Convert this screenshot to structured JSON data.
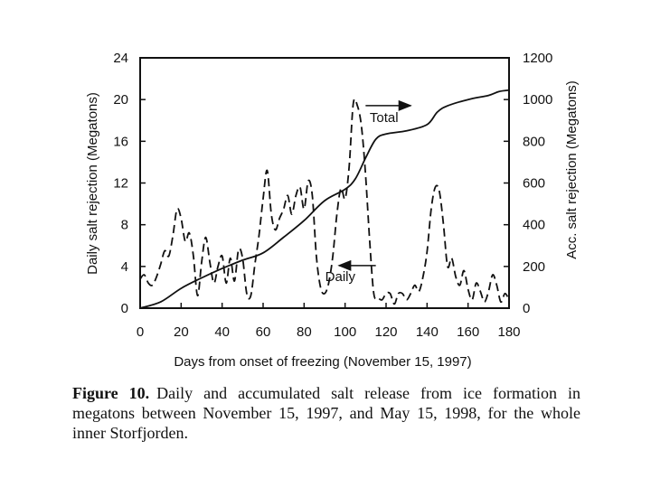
{
  "chart_data": {
    "type": "line",
    "xlabel": "Days from onset of freezing (November 15, 1997)",
    "ylabel": "Daily salt rejection (Megatons)",
    "y2label": "Acc. salt rejection (Megatons)",
    "xlim": [
      0,
      180
    ],
    "ylim": [
      0,
      24
    ],
    "y2lim": [
      0,
      1200
    ],
    "xticks": [
      0,
      20,
      40,
      60,
      80,
      100,
      120,
      140,
      160,
      180
    ],
    "yticks": [
      0,
      4,
      8,
      12,
      16,
      20,
      24
    ],
    "y2ticks": [
      0,
      200,
      400,
      600,
      800,
      1000,
      1200
    ],
    "grid": false,
    "series": [
      {
        "name": "Daily",
        "axis": "left",
        "style": "dashed",
        "x": [
          0,
          2,
          4,
          6,
          8,
          10,
          12,
          14,
          16,
          18,
          20,
          22,
          24,
          26,
          28,
          30,
          32,
          34,
          36,
          38,
          40,
          42,
          44,
          46,
          48,
          50,
          52,
          54,
          56,
          58,
          60,
          62,
          64,
          66,
          68,
          70,
          72,
          74,
          76,
          78,
          80,
          82,
          84,
          86,
          88,
          90,
          92,
          94,
          96,
          98,
          100,
          102,
          104,
          106,
          108,
          110,
          112,
          114,
          116,
          118,
          120,
          122,
          124,
          126,
          128,
          130,
          132,
          134,
          136,
          138,
          140,
          142,
          144,
          146,
          148,
          150,
          152,
          154,
          156,
          158,
          160,
          162,
          164,
          166,
          168,
          170,
          172,
          174,
          176,
          178,
          180
        ],
        "values": [
          2.8,
          3.2,
          2.4,
          2.2,
          3.0,
          4.2,
          5.5,
          5.0,
          7.0,
          9.5,
          8.6,
          6.4,
          7.2,
          5.0,
          1.2,
          4.4,
          6.8,
          4.4,
          2.4,
          4.0,
          5.0,
          2.4,
          4.8,
          2.6,
          5.6,
          4.8,
          1.4,
          1.2,
          4.2,
          7.0,
          10.5,
          13.2,
          9.0,
          7.5,
          8.6,
          9.5,
          10.8,
          9.0,
          10.8,
          11.6,
          9.5,
          12.2,
          10.8,
          5.0,
          2.0,
          1.4,
          2.4,
          5.0,
          9.0,
          11.5,
          10.5,
          13.6,
          19.6,
          19.4,
          17.4,
          12.8,
          6.4,
          1.4,
          1.0,
          0.8,
          1.4,
          1.4,
          0.4,
          1.4,
          1.4,
          0.8,
          1.4,
          2.2,
          1.6,
          3.0,
          5.4,
          9.5,
          11.6,
          11.2,
          8.0,
          4.0,
          4.8,
          3.0,
          2.2,
          3.6,
          1.8,
          0.8,
          2.4,
          1.6,
          0.6,
          1.6,
          3.2,
          2.2,
          0.6,
          1.4,
          0.8
        ]
      },
      {
        "name": "Total",
        "axis": "right",
        "style": "solid",
        "x": [
          0,
          10,
          20,
          30,
          40,
          50,
          60,
          70,
          80,
          90,
          100,
          105,
          110,
          115,
          120,
          130,
          140,
          145,
          150,
          160,
          170,
          175,
          180
        ],
        "values": [
          0,
          30,
          95,
          145,
          190,
          230,
          265,
          340,
          420,
          515,
          570,
          620,
          720,
          810,
          835,
          850,
          880,
          940,
          970,
          1000,
          1020,
          1038,
          1045
        ]
      }
    ],
    "annotations": [
      {
        "text": "Total",
        "series": "Total",
        "at_x": 112,
        "at_y": 1010
      },
      {
        "text": "Daily",
        "series": "Daily",
        "at_x": 100,
        "at_y": 1.4
      }
    ]
  },
  "caption": {
    "label": "Figure 10.",
    "text": "Daily and accumulated salt release from ice formation in megatons between November 15, 1997, and May 15, 1998, for the whole inner Storfjorden."
  }
}
